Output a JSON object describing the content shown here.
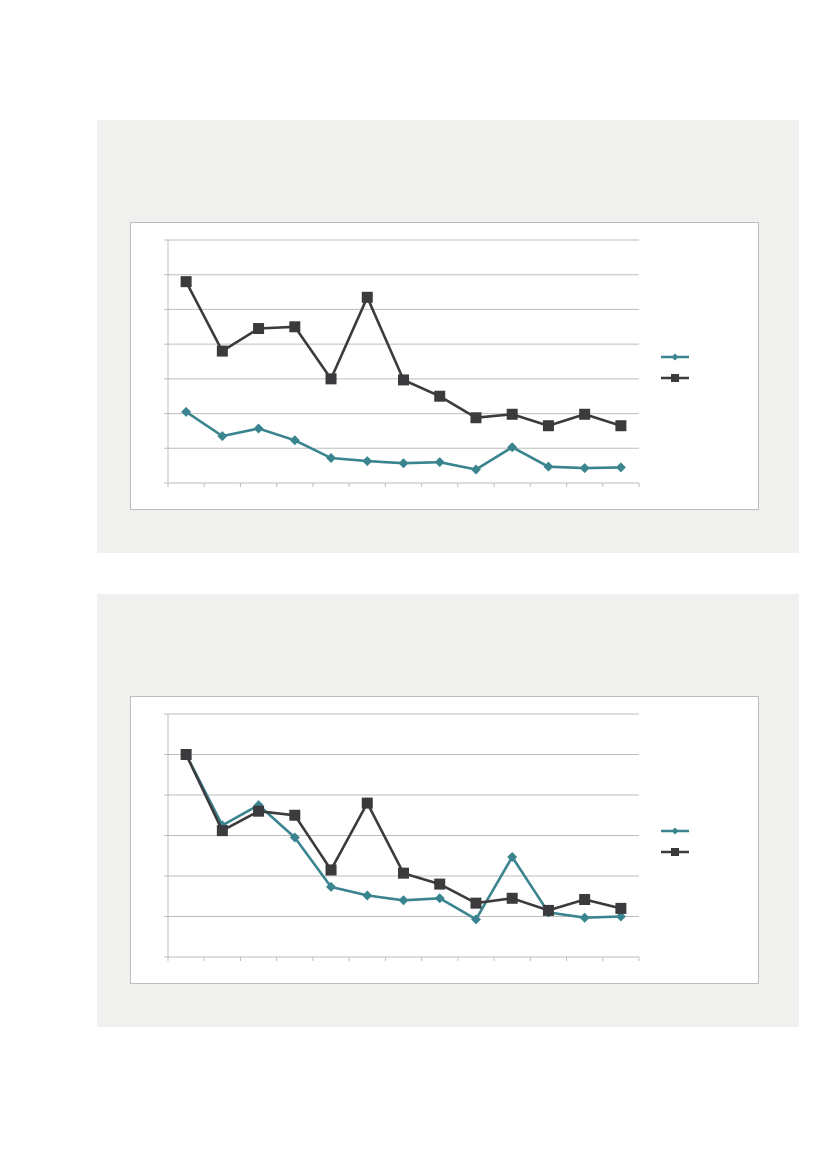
{
  "colors": {
    "series_1": "#3a8490",
    "series_2": "#3b3b3d",
    "panel_background": "#f0f0ef",
    "gridline": "#bdbdbd"
  },
  "chart_data": [
    {
      "type": "line",
      "x": [
        1,
        2,
        3,
        4,
        5,
        6,
        7,
        8,
        9,
        10,
        11,
        12,
        13
      ],
      "ylim": [
        0,
        7
      ],
      "grid": true,
      "legend": "right",
      "series": [
        {
          "marker": "diamond",
          "values": [
            2.05,
            1.35,
            1.57,
            1.23,
            0.72,
            0.63,
            0.57,
            0.6,
            0.39,
            1.03,
            0.47,
            0.43,
            0.45
          ]
        },
        {
          "marker": "square",
          "values": [
            5.8,
            3.8,
            4.45,
            4.5,
            3.0,
            5.35,
            2.97,
            2.5,
            1.88,
            1.98,
            1.65,
            1.98,
            1.65
          ]
        }
      ]
    },
    {
      "type": "line",
      "x": [
        1,
        2,
        3,
        4,
        5,
        6,
        7,
        8,
        9,
        10,
        11,
        12,
        13
      ],
      "ylim": [
        0,
        6
      ],
      "grid": true,
      "legend": "right",
      "series": [
        {
          "marker": "diamond",
          "values": [
            5.0,
            3.25,
            3.75,
            2.95,
            1.73,
            1.52,
            1.4,
            1.45,
            0.93,
            2.47,
            1.1,
            0.97,
            1.0
          ]
        },
        {
          "marker": "square",
          "values": [
            5.0,
            3.12,
            3.6,
            3.5,
            2.15,
            3.8,
            2.07,
            1.8,
            1.33,
            1.45,
            1.15,
            1.42,
            1.2
          ]
        }
      ]
    }
  ]
}
